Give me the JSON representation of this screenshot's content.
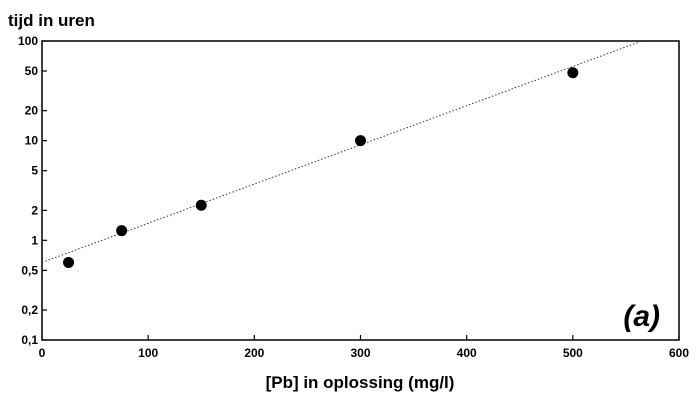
{
  "chart_data": {
    "type": "scatter",
    "ylabel": "tijd in uren",
    "xlabel": "[Pb] in oplossing (mg/l)",
    "annotation": "(a)",
    "xlim": [
      0,
      600
    ],
    "ylim": [
      0.1,
      100
    ],
    "y_scale": "log",
    "grid": false,
    "x_ticks": [
      0,
      100,
      200,
      300,
      400,
      500,
      600
    ],
    "x_tick_labels": [
      "0",
      "100",
      "200",
      "300",
      "400",
      "500",
      "600"
    ],
    "y_ticks": [
      100,
      50,
      20,
      10,
      5,
      2,
      1,
      0.5,
      0.2,
      0.1
    ],
    "y_tick_labels": [
      "100",
      "50",
      "20",
      "10",
      "5",
      "2",
      "1",
      "0,5",
      "0,2",
      "0,1"
    ],
    "series": [
      {
        "x": [
          25,
          75,
          150,
          300,
          500
        ],
        "y": [
          0.6,
          1.25,
          2.25,
          10,
          48
        ]
      }
    ],
    "trendline": {
      "style": "dotted",
      "x": [
        0,
        565
      ],
      "y": [
        0.6,
        100
      ]
    }
  }
}
